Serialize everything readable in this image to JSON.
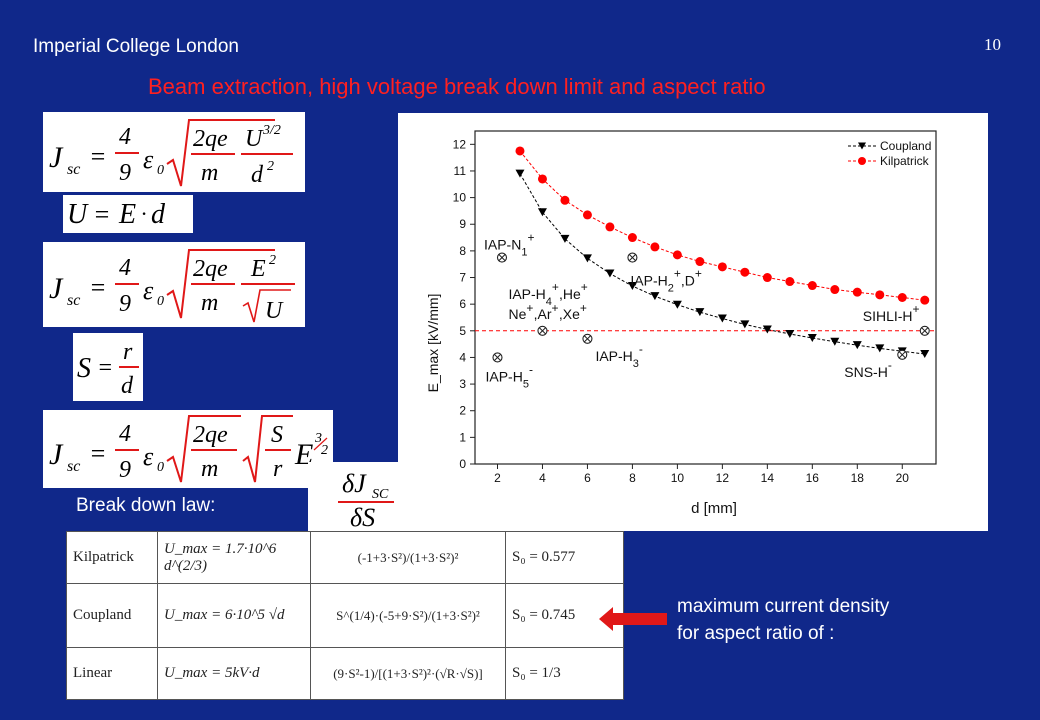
{
  "header": {
    "institution": "Imperial College London",
    "page_number": "10"
  },
  "title": "Beam extraction, high voltage break down limit and aspect ratio",
  "breakdown_label": "Break down law:",
  "derivative_eq": {
    "text": "δJ_SC / δS = k*"
  },
  "note": {
    "line1": "maximum current density",
    "line2": "for aspect ratio of :"
  },
  "equations": [
    {
      "text": "J_SC = 4/9 ε0 √(2qe/m) U^(3/2)/d²"
    },
    {
      "text": "U = E·d"
    },
    {
      "text": "J_SC = 4/9 ε0 √(2qe/m) E²/√U"
    },
    {
      "text": "S = r/d"
    },
    {
      "text": "J_SC = 4/9 ε0 √(2qe/m) √(S/r) E^(3/2)"
    }
  ],
  "table": {
    "rows": [
      {
        "name": "Kilpatrick",
        "umax": "U_max = 1.7·10^6 d^(2/3)",
        "deriv": "(-1+3·S²)/(1+3·S²)²",
        "s0": "S₀ = 0.577"
      },
      {
        "name": "Coupland",
        "umax": "U_max = 6·10^5 √d",
        "deriv": "S^(1/4)·(-5+9·S²)/(1+3·S²)²",
        "s0": "S₀ = 0.745"
      },
      {
        "name": "Linear",
        "umax": "U_max = 5kV·d",
        "deriv": "(9·S²-1)/[(1+3·S²)²·(√R·√S)]",
        "s0": "S₀ = 1/3"
      }
    ]
  },
  "chart_data": {
    "type": "line",
    "xlabel": "d [mm]",
    "ylabel": "E_max [kV/mm]",
    "xlim": [
      1,
      21.5
    ],
    "ylim": [
      0,
      12.5
    ],
    "xticks": [
      2,
      4,
      6,
      8,
      10,
      12,
      14,
      16,
      18,
      20
    ],
    "yticks": [
      0,
      1,
      2,
      3,
      4,
      5,
      6,
      7,
      8,
      9,
      10,
      11,
      12
    ],
    "legend_position": "top-right",
    "series": [
      {
        "name": "Coupland",
        "color": "#000000",
        "marker": "triangle-down",
        "x": [
          3,
          4,
          5,
          6,
          7,
          8,
          9,
          10,
          11,
          12,
          13,
          14,
          15,
          16,
          17,
          18,
          19,
          20,
          21
        ],
        "values": [
          10.9,
          9.45,
          8.45,
          7.72,
          7.15,
          6.68,
          6.3,
          5.98,
          5.7,
          5.46,
          5.24,
          5.05,
          4.88,
          4.73,
          4.59,
          4.46,
          4.34,
          4.23,
          4.13
        ]
      },
      {
        "name": "Kilpatrick",
        "color": "#ff0000",
        "marker": "circle",
        "x": [
          3,
          4,
          5,
          6,
          7,
          8,
          9,
          10,
          11,
          12,
          13,
          14,
          15,
          16,
          17,
          18,
          19,
          20,
          21
        ],
        "values": [
          11.75,
          10.7,
          9.9,
          9.35,
          8.9,
          8.5,
          8.15,
          7.85,
          7.6,
          7.4,
          7.2,
          7.0,
          6.85,
          6.7,
          6.55,
          6.45,
          6.35,
          6.25,
          6.15
        ]
      }
    ],
    "reference_line": {
      "y": 5,
      "color": "#ff0000",
      "style": "dashed"
    },
    "points": [
      {
        "x": 2.2,
        "y": 7.75,
        "label": "IAP-N",
        "sup": "+",
        "sub": "1"
      },
      {
        "x": 8.0,
        "y": 7.75,
        "label": "IAP-H",
        "sup": "+",
        "sub": "2",
        "extra": ",D",
        "extra_sup": "+"
      },
      {
        "x": 4.0,
        "y": 5.0,
        "label": "IAP-H",
        "sup": "+",
        "sub": "4",
        "extra": ",He",
        "extra_sup": "+",
        "line2": "Ne",
        "line2b": ",Ar",
        "line2c": ",Xe",
        "line2_sup": "+"
      },
      {
        "x": 6.0,
        "y": 4.7,
        "label": "IAP-H",
        "sup": "-",
        "sub": "3"
      },
      {
        "x": 2.0,
        "y": 4.0,
        "label": "IAP-H",
        "sup": "-",
        "sub": "5"
      },
      {
        "x": 21.0,
        "y": 5.0,
        "label": "SIHLI-H",
        "sup": "+"
      },
      {
        "x": 20.0,
        "y": 4.1,
        "label": "SNS-H",
        "sup": "-"
      }
    ]
  }
}
